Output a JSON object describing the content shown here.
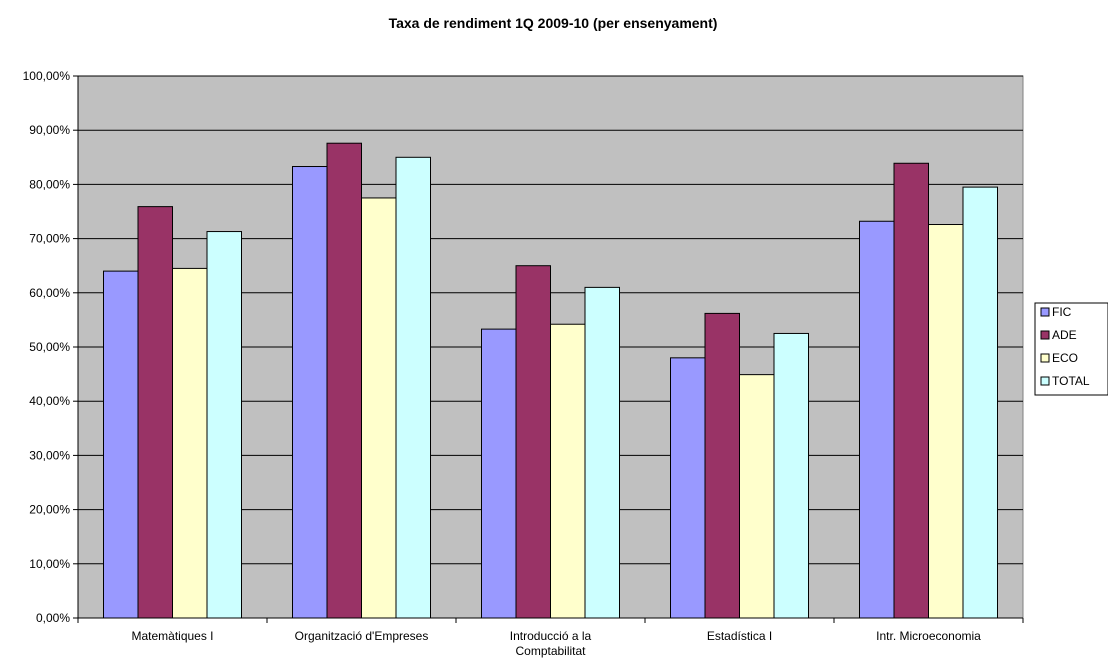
{
  "chart_data": {
    "type": "bar",
    "title": "Taxa de rendiment 1Q 2009-10 (per ensenyament)",
    "categories": [
      [
        "Matemàtiques I"
      ],
      [
        "Organització d'Empreses"
      ],
      [
        "Introducció a la",
        "Comptabilitat"
      ],
      [
        "Estadística I"
      ],
      [
        "Intr. Microeconomia"
      ]
    ],
    "series": [
      {
        "name": "FIC",
        "color": "#9999FF",
        "values": [
          64.0,
          83.3,
          53.3,
          48.0,
          73.2
        ]
      },
      {
        "name": "ADE",
        "color": "#993366",
        "values": [
          75.9,
          87.6,
          65.0,
          56.2,
          83.9
        ]
      },
      {
        "name": "ECO",
        "color": "#FFFFCC",
        "values": [
          64.5,
          77.5,
          54.2,
          44.9,
          72.6
        ]
      },
      {
        "name": "TOTAL",
        "color": "#CCFFFF",
        "values": [
          71.3,
          85.0,
          61.0,
          52.5,
          79.5
        ]
      }
    ],
    "ylim": [
      0,
      100
    ],
    "ystep": 10,
    "ytick_labels": [
      "0,00%",
      "10,00%",
      "20,00%",
      "30,00%",
      "40,00%",
      "50,00%",
      "60,00%",
      "70,00%",
      "80,00%",
      "90,00%",
      "100,00%"
    ],
    "plot_background": "#C0C0C0",
    "grid": true,
    "legend_position": "right"
  }
}
